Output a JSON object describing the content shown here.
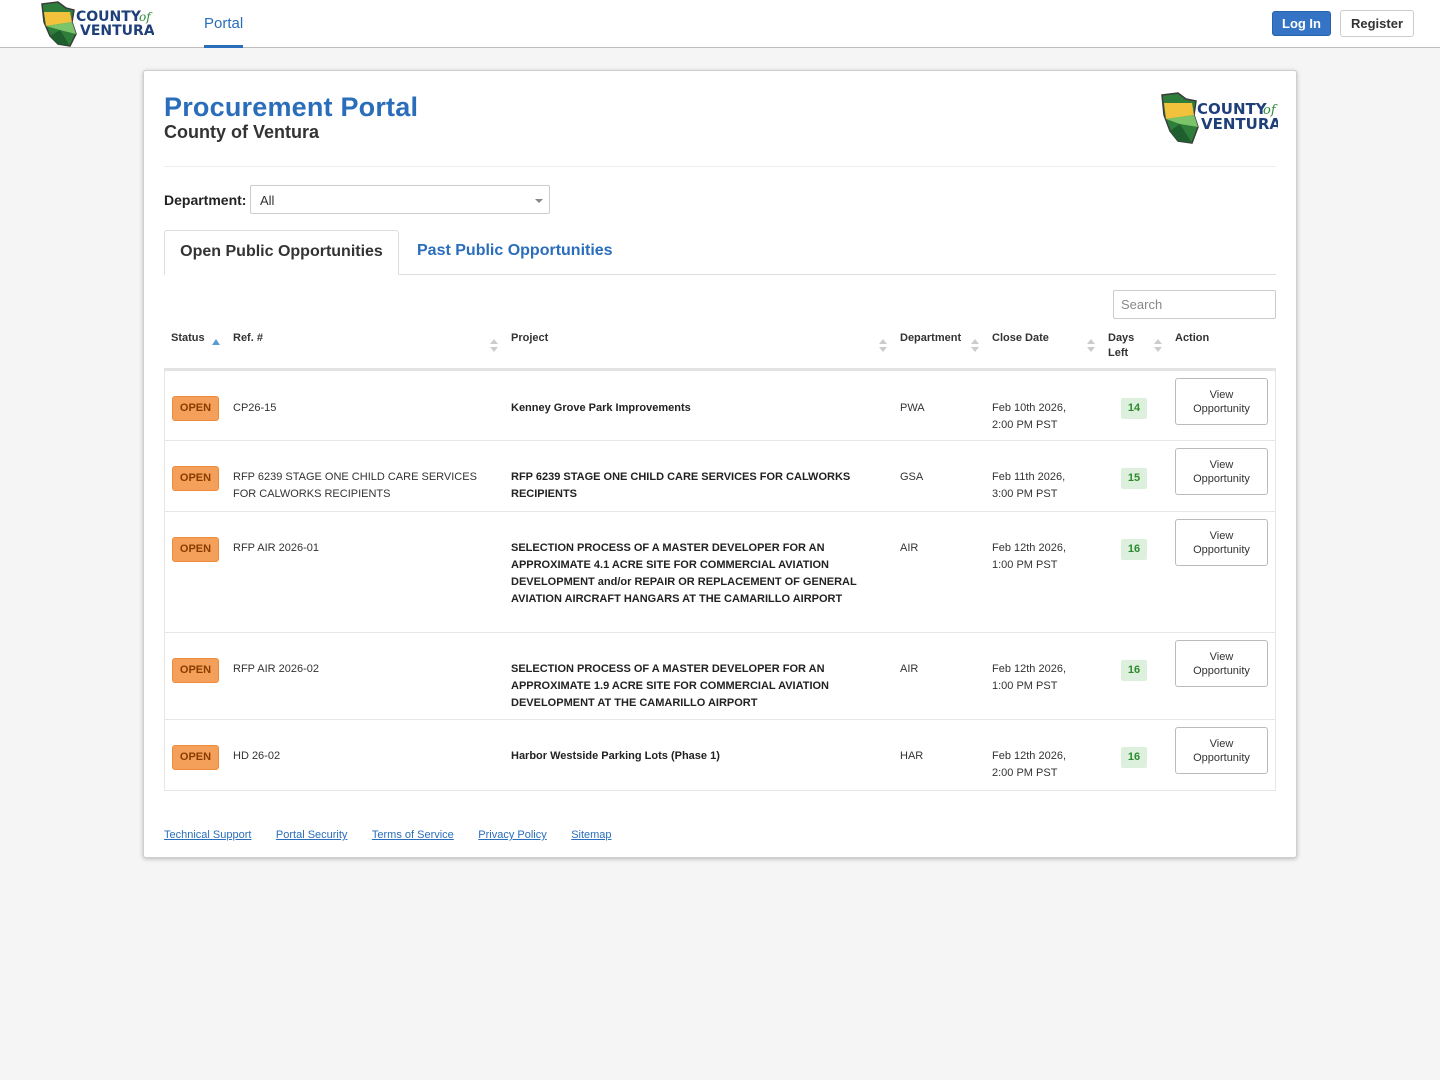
{
  "nav": {
    "logo_text_top": "COUNTY",
    "logo_text_of": "of",
    "logo_text_bottom": "VENTURA",
    "portal_label": "Portal",
    "login_label": "Log In",
    "register_label": "Register"
  },
  "header": {
    "title": "Procurement Portal",
    "subtitle": "County of Ventura"
  },
  "filter": {
    "department_label": "Department:",
    "department_value": "All"
  },
  "tabs": [
    {
      "label": "Open Public Opportunities",
      "active": true
    },
    {
      "label": "Past Public Opportunities",
      "active": false
    }
  ],
  "search": {
    "placeholder": "Search"
  },
  "table": {
    "columns": [
      "Status",
      "Ref. #",
      "Project",
      "Department",
      "Close Date",
      "Days Left",
      "Action"
    ],
    "rows": [
      {
        "status": "OPEN",
        "ref": "CP26-15",
        "project": "Kenney Grove Park Improvements",
        "department": "PWA",
        "close_date": "Feb 10th 2026, 2:00 PM PST",
        "days_left": "14",
        "action": "View Opportunity"
      },
      {
        "status": "OPEN",
        "ref": "RFP 6239 STAGE ONE CHILD CARE SERVICES FOR CALWORKS RECIPIENTS",
        "project": "RFP 6239 STAGE ONE CHILD CARE SERVICES FOR CALWORKS RECIPIENTS",
        "department": "GSA",
        "close_date": "Feb 11th 2026, 3:00 PM PST",
        "days_left": "15",
        "action": "View Opportunity"
      },
      {
        "status": "OPEN",
        "ref": "RFP AIR 2026-01",
        "project": "SELECTION PROCESS OF A MASTER DEVELOPER FOR AN APPROXIMATE 4.1 ACRE SITE FOR COMMERCIAL AVIATION DEVELOPMENT and/or REPAIR OR REPLACEMENT OF GENERAL AVIATION AIRCRAFT HANGARS AT THE CAMARILLO AIRPORT",
        "department": "AIR",
        "close_date": "Feb 12th 2026, 1:00 PM PST",
        "days_left": "16",
        "action": "View Opportunity"
      },
      {
        "status": "OPEN",
        "ref": "RFP AIR 2026-02",
        "project": "SELECTION PROCESS OF A MASTER DEVELOPER FOR AN APPROXIMATE 1.9 ACRE SITE FOR COMMERCIAL AVIATION DEVELOPMENT AT THE CAMARILLO AIRPORT",
        "department": "AIR",
        "close_date": "Feb 12th 2026, 1:00 PM PST",
        "days_left": "16",
        "action": "View Opportunity"
      },
      {
        "status": "OPEN",
        "ref": "HD 26-02",
        "project": "Harbor Westside Parking Lots (Phase 1)",
        "department": "HAR",
        "close_date": "Feb 12th 2026, 2:00 PM PST",
        "days_left": "16",
        "action": "View Opportunity"
      }
    ]
  },
  "footer": {
    "links": [
      "Technical Support",
      "Portal Security",
      "Terms of Service",
      "Privacy Policy",
      "Sitemap"
    ]
  },
  "colors": {
    "brand_blue": "#2a6ebb",
    "open_badge": "#f5a05a",
    "days_badge": "#ddf0dd"
  }
}
